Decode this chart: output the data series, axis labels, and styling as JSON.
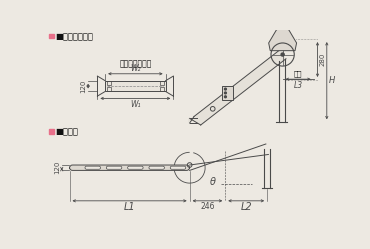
{
  "bg_color": "#ede9e2",
  "pink_color": "#e8708a",
  "line_color": "#4a4a4a",
  "dim_color": "#4a4a4a",
  "fill_color": "#d8d4cc",
  "title1": "■コンベヤ断面",
  "title2": "■寸法図",
  "label_w1": "W₁",
  "label_w2": "W₂",
  "label_l1": "L1",
  "label_l2": "L2",
  "label_l3": "L3",
  "label_h": "H",
  "label_120a": "120",
  "label_120b": "120",
  "label_280": "280",
  "label_246": "246",
  "label_theta": "θ",
  "label_hinge": "ヒンジプレート",
  "label_rako": "落口"
}
